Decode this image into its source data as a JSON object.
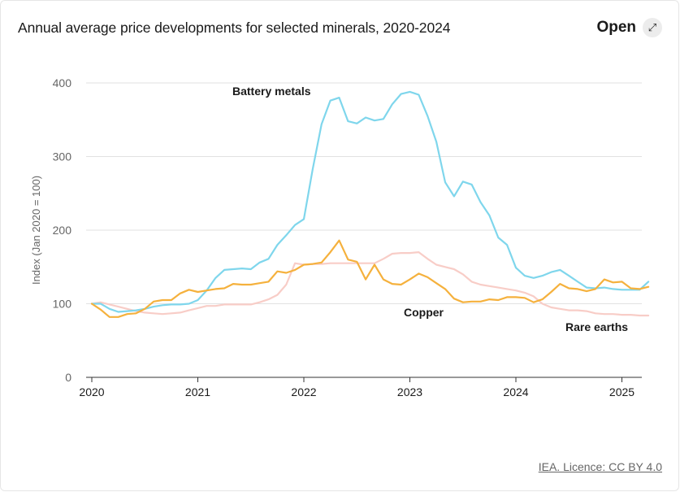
{
  "header": {
    "title": "Annual average price developments for selected minerals, 2020-2024",
    "open_label": "Open",
    "open_icon": "expand-arrows-icon"
  },
  "footer": {
    "license": "IEA. Licence: CC BY 4.0"
  },
  "chart_data": {
    "type": "line",
    "ylabel": "Index (Jan 2020 = 100)",
    "ylim": [
      0,
      400
    ],
    "yticks": [
      "0",
      "100",
      "200",
      "300",
      "400"
    ],
    "xticks": [
      "2020",
      "2021",
      "2022",
      "2023",
      "2024",
      "2025"
    ],
    "xstart": 2020,
    "step_months": 1,
    "grid": true,
    "series": [
      {
        "name": "Battery metals",
        "color": "#7fd6ec",
        "values": [
          100,
          100,
          93,
          89,
          90,
          91,
          93,
          96,
          98,
          99,
          99,
          100,
          105,
          118,
          135,
          146,
          147,
          148,
          147,
          156,
          161,
          180,
          193,
          207,
          215,
          283,
          344,
          376,
          380,
          348,
          345,
          353,
          349,
          351,
          371,
          385,
          388,
          384,
          355,
          320,
          265,
          246,
          266,
          262,
          238,
          220,
          190,
          180,
          149,
          138,
          135,
          138,
          143,
          146,
          138,
          130,
          122,
          121,
          122,
          120,
          119,
          119,
          119,
          130
        ],
        "label_side": "above"
      },
      {
        "name": "Copper",
        "color": "#f5b13d",
        "values": [
          100,
          92,
          82,
          82,
          86,
          87,
          93,
          103,
          105,
          105,
          114,
          119,
          116,
          118,
          120,
          121,
          127,
          126,
          126,
          128,
          130,
          144,
          142,
          146,
          153,
          154,
          156,
          170,
          186,
          160,
          157,
          133,
          153,
          133,
          127,
          126,
          133,
          141,
          136,
          128,
          120,
          107,
          102,
          103,
          103,
          106,
          105,
          109,
          109,
          108,
          102,
          106,
          116,
          127,
          121,
          120,
          117,
          120,
          133,
          129,
          130,
          121,
          120,
          123
        ],
        "label_side": "below"
      },
      {
        "name": "Rare earths",
        "color": "#f8cdc7",
        "values": [
          100,
          102,
          99,
          96,
          93,
          90,
          88,
          87,
          86,
          87,
          88,
          91,
          94,
          97,
          97,
          99,
          99,
          99,
          99,
          102,
          106,
          112,
          126,
          155,
          153,
          154,
          154,
          155,
          155,
          155,
          155,
          155,
          155,
          161,
          168,
          169,
          169,
          170,
          161,
          153,
          150,
          147,
          140,
          130,
          126,
          124,
          122,
          120,
          118,
          115,
          110,
          100,
          95,
          93,
          91,
          91,
          90,
          87,
          86,
          86,
          85,
          85,
          84,
          84
        ],
        "label_side": "below"
      }
    ]
  }
}
